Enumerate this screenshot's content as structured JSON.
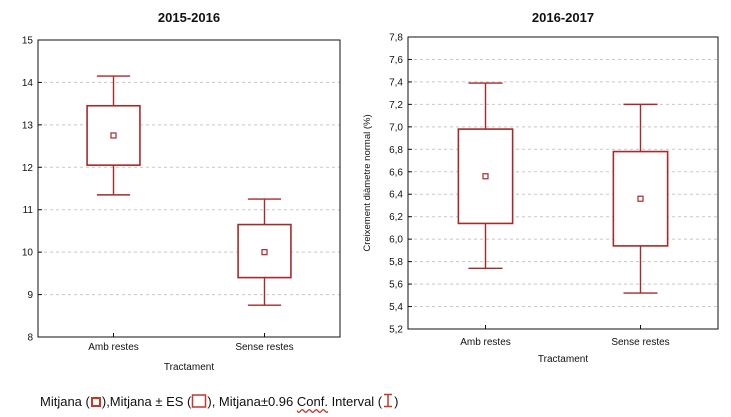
{
  "chart_data": [
    {
      "type": "box",
      "title": "2015-2016",
      "xlabel": "Tractament",
      "ylabel": "",
      "ylim": [
        8,
        15
      ],
      "yticks": [
        "8",
        "9",
        "10",
        "11",
        "12",
        "13",
        "14",
        "15"
      ],
      "categories": [
        "Amb restes",
        "Sense restes"
      ],
      "grid": true,
      "series": [
        {
          "mean": [
            12.75,
            10.0
          ],
          "se_low": [
            12.05,
            9.4
          ],
          "se_high": [
            13.45,
            10.65
          ],
          "ci_low": [
            11.35,
            8.75
          ],
          "ci_high": [
            14.15,
            11.25
          ]
        }
      ]
    },
    {
      "type": "box",
      "title": "2016-2017",
      "xlabel": "Tractament",
      "ylabel": "Creixement diàmetre normal (%)",
      "ylim": [
        5.2,
        7.8
      ],
      "yticks": [
        "5,2",
        "5,4",
        "5,6",
        "5,8",
        "6,0",
        "6,2",
        "6,4",
        "6,6",
        "6,8",
        "7,0",
        "7,2",
        "7,4",
        "7,6",
        "7,8"
      ],
      "categories": [
        "Amb restes",
        "Sense restes"
      ],
      "grid": true,
      "series": [
        {
          "mean": [
            6.56,
            6.36
          ],
          "se_low": [
            6.14,
            5.94
          ],
          "se_high": [
            6.98,
            6.78
          ],
          "ci_low": [
            5.74,
            5.52
          ],
          "ci_high": [
            7.39,
            7.2
          ]
        }
      ]
    }
  ],
  "legend": {
    "part1": "Mitjana (",
    "part2": "),Mitjana ± ES (",
    "part3": "), Mitjana±0.96 ",
    "conf": "Conf.",
    "part4": " Interval (",
    "part5": ")"
  },
  "colors": {
    "box": "#a52a2a",
    "axis": "#111111",
    "grid": "#c8c8c8"
  }
}
